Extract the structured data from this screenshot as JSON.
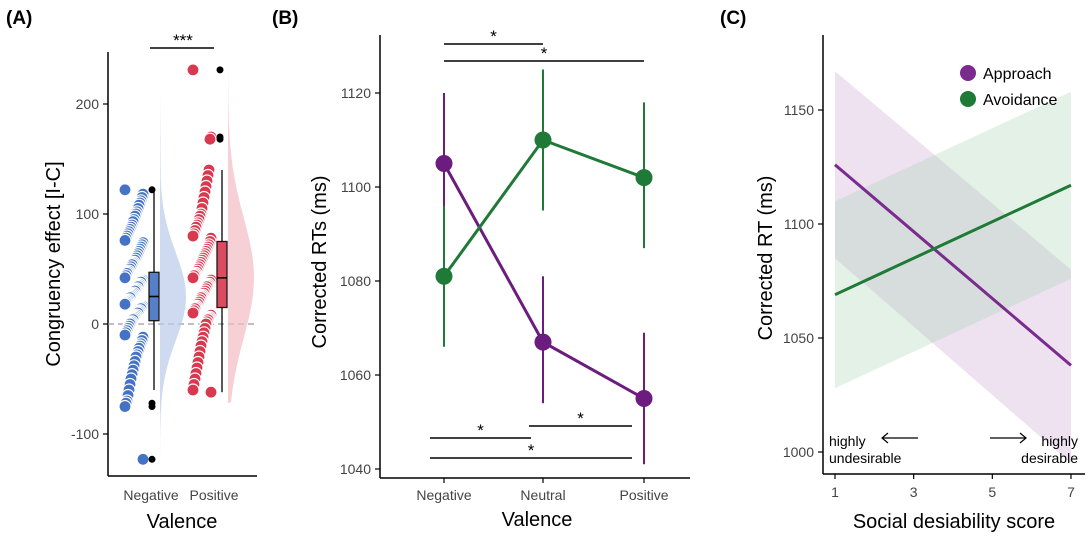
{
  "chart_data": [
    {
      "panel": "(A)",
      "type": "scatter",
      "subtype": "raincloud",
      "xlabel": "Valence",
      "ylabel": "Congruency effect [I-C]",
      "categories": [
        "Negative",
        "Positive"
      ],
      "ylim": [
        -140,
        250
      ],
      "yticks": [
        -100,
        0,
        100,
        200
      ],
      "reference_line": 0,
      "significance": [
        {
          "from": "Negative",
          "to": "Positive",
          "label": "***"
        }
      ],
      "colors": {
        "Negative": "#4472c4",
        "Positive": "#d9394f"
      },
      "series": [
        {
          "name": "Negative",
          "box": {
            "q1": 3,
            "median": 25,
            "q3": 47,
            "whisker_low": -60,
            "whisker_high": 122
          },
          "outliers": [
            122,
            -72,
            -75,
            -123
          ],
          "values": [
            122,
            118,
            115,
            112,
            110,
            108,
            105,
            102,
            100,
            98,
            95,
            93,
            90,
            88,
            86,
            84,
            82,
            80,
            78,
            76,
            74,
            72,
            70,
            68,
            66,
            64,
            62,
            60,
            58,
            56,
            55,
            54,
            52,
            50,
            48,
            47,
            46,
            44,
            42,
            40,
            39,
            38,
            36,
            35,
            34,
            32,
            31,
            30,
            28,
            27,
            26,
            25,
            24,
            22,
            21,
            20,
            19,
            18,
            16,
            15,
            14,
            12,
            11,
            10,
            8,
            7,
            6,
            5,
            4,
            2,
            1,
            0,
            -2,
            -4,
            -6,
            -8,
            -10,
            -12,
            -15,
            -18,
            -20,
            -22,
            -25,
            -28,
            -30,
            -34,
            -38,
            -42,
            -46,
            -50,
            -55,
            -60,
            -65,
            -70,
            -72,
            -75,
            -123
          ]
        },
        {
          "name": "Positive",
          "box": {
            "q1": 15,
            "median": 42,
            "q3": 75,
            "whisker_low": -62,
            "whisker_high": 140
          },
          "outliers": [
            231,
            170,
            168
          ],
          "values": [
            231,
            170,
            168,
            140,
            135,
            130,
            125,
            120,
            115,
            110,
            105,
            100,
            98,
            95,
            92,
            90,
            88,
            85,
            82,
            80,
            78,
            75,
            72,
            70,
            68,
            66,
            64,
            62,
            60,
            58,
            56,
            54,
            52,
            50,
            48,
            46,
            45,
            44,
            42,
            40,
            38,
            36,
            35,
            34,
            32,
            30,
            28,
            26,
            25,
            24,
            22,
            20,
            18,
            16,
            15,
            14,
            12,
            10,
            8,
            6,
            5,
            4,
            2,
            0,
            -4,
            -8,
            -12,
            -16,
            -20,
            -25,
            -30,
            -35,
            -40,
            -45,
            -50,
            -55,
            -60,
            -62
          ]
        }
      ]
    },
    {
      "panel": "(B)",
      "type": "line",
      "xlabel": "Valence",
      "ylabel": "Corrected RTs (ms)",
      "categories": [
        "Negative",
        "Neutral",
        "Positive"
      ],
      "ylim": [
        1040,
        1130
      ],
      "yticks": [
        1040,
        1060,
        1080,
        1100,
        1120
      ],
      "series": [
        {
          "name": "Approach",
          "color": "#6b1c7e",
          "values": [
            1105,
            1067,
            1055
          ],
          "lower": [
            1090,
            1054,
            1041
          ],
          "upper": [
            1120,
            1081,
            1069
          ]
        },
        {
          "name": "Avoidance",
          "color": "#1e7a36",
          "values": [
            1081,
            1110,
            1102
          ],
          "lower": [
            1066,
            1095,
            1087
          ],
          "upper": [
            1096,
            1125,
            1118
          ]
        }
      ],
      "significance_top": [
        {
          "from": "Negative",
          "to": "Neutral",
          "label": "*"
        },
        {
          "from": "Negative",
          "to": "Positive",
          "label": "*"
        }
      ],
      "significance_bottom": [
        {
          "from": "Negative",
          "to": "Neutral",
          "label": "*"
        },
        {
          "from": "Neutral",
          "to": "Positive",
          "label": "*"
        },
        {
          "from": "Negative",
          "to": "Positive",
          "label": "*"
        }
      ]
    },
    {
      "panel": "(C)",
      "type": "line",
      "subtype": "regression-with-ci",
      "xlabel": "Social desiability score",
      "ylabel": "Corrected RT (ms)",
      "xlim": [
        1,
        7
      ],
      "xticks": [
        1,
        3,
        5,
        7
      ],
      "ylim": [
        990,
        1175
      ],
      "yticks": [
        1000,
        1050,
        1100,
        1150
      ],
      "legend": "top-right",
      "series": [
        {
          "name": "Approach",
          "color": "#7b2a8e",
          "x": [
            1,
            7
          ],
          "y": [
            1126,
            1038
          ],
          "ci_lower": [
            1085,
            995
          ],
          "ci_upper": [
            1167,
            1080
          ]
        },
        {
          "name": "Avoidance",
          "color": "#1e7a36",
          "x": [
            1,
            7
          ],
          "y": [
            1069,
            1117
          ],
          "ci_lower": [
            1028,
            1076
          ],
          "ci_upper": [
            1110,
            1158
          ]
        }
      ],
      "annotations": {
        "left": {
          "line1": "highly",
          "line2": "undesirable",
          "arrow": "←"
        },
        "right": {
          "line1": "highly",
          "line2": "desirable",
          "arrow": "→"
        }
      }
    }
  ]
}
